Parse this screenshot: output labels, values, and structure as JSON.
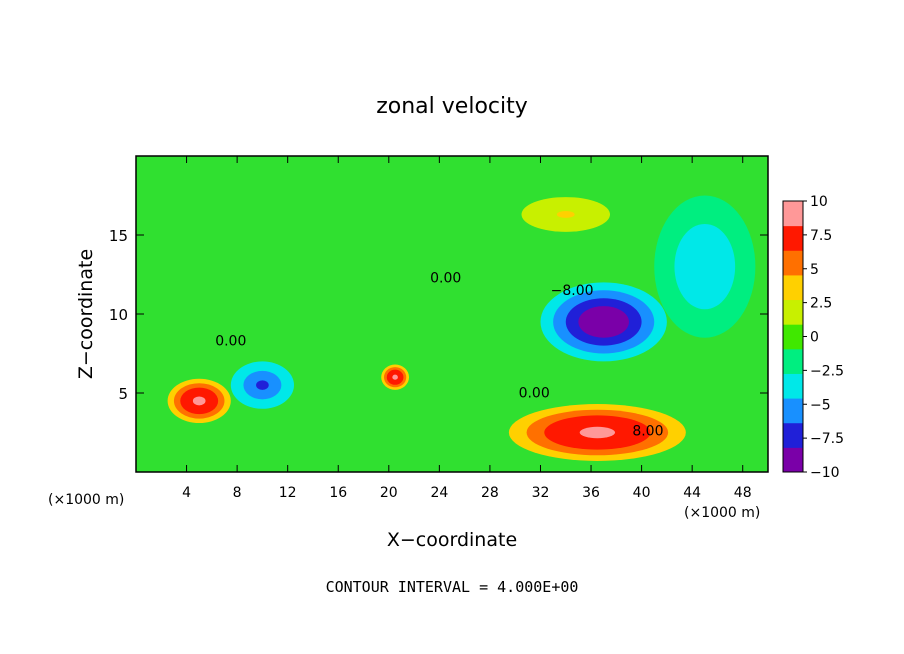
{
  "chart_data": {
    "type": "heatmap",
    "title": "zonal velocity",
    "xlabel": "X−coordinate",
    "ylabel": "Z−coordinate",
    "x_unit_left": "(×1000 m)",
    "x_unit_right": "(×1000 m)",
    "footer": "CONTOUR INTERVAL = 4.000E+00",
    "xlim": [
      0,
      50
    ],
    "ylim": [
      0,
      20
    ],
    "x_ticks": [
      4,
      8,
      12,
      16,
      20,
      24,
      28,
      32,
      36,
      40,
      44,
      48
    ],
    "x_tick_labels": [
      "4",
      "8",
      "12",
      "16",
      "20",
      "24",
      "28",
      "32",
      "36",
      "40",
      "44",
      "48"
    ],
    "y_ticks": [
      5,
      10,
      15
    ],
    "y_tick_labels": [
      "5",
      "10",
      "15"
    ],
    "colorbar": {
      "range": [
        -10,
        10
      ],
      "ticks": [
        10,
        7.5,
        5,
        2.5,
        0,
        -2.5,
        -5,
        -7.5,
        -10
      ],
      "tick_labels": [
        "10",
        "7.5",
        "5",
        "2.5",
        "0",
        "−2.5",
        "−5",
        "−7.5",
        "−10"
      ],
      "colors": [
        "#7a00a8",
        "#2020d8",
        "#1890ff",
        "#00e8e8",
        "#00ee80",
        "#40e800",
        "#c8f000",
        "#ffd000",
        "#ff7000",
        "#ff1800",
        "#ff9898"
      ]
    },
    "contour_labels": [
      {
        "text": "0.00",
        "x": 24.5,
        "y": 12.0
      },
      {
        "text": "0.00",
        "x": 7.5,
        "y": 8.0
      },
      {
        "text": "0.00",
        "x": 31.5,
        "y": 4.7
      },
      {
        "text": "−8.00",
        "x": 34.5,
        "y": 11.2
      },
      {
        "text": "8.00",
        "x": 40.5,
        "y": 2.3
      }
    ],
    "features": [
      {
        "value": 9,
        "x": 5.0,
        "y": 4.5,
        "rx": 2.5,
        "ry": 1.4
      },
      {
        "value": 9,
        "x": 20.5,
        "y": 6.0,
        "rx": 1.1,
        "ry": 0.8
      },
      {
        "value": -10,
        "x": 37.0,
        "y": 9.5,
        "rx": 5.0,
        "ry": 2.5
      },
      {
        "value": 9,
        "x": 36.5,
        "y": 2.5,
        "rx": 7.0,
        "ry": 1.8
      },
      {
        "value": -7,
        "x": 10.0,
        "y": 5.5,
        "rx": 2.5,
        "ry": 1.5
      },
      {
        "value": 3,
        "x": 34.0,
        "y": 16.3,
        "rx": 3.5,
        "ry": 1.1
      },
      {
        "value": -4,
        "x": 45.0,
        "y": 13.0,
        "rx": 4.0,
        "ry": 4.5
      }
    ]
  }
}
